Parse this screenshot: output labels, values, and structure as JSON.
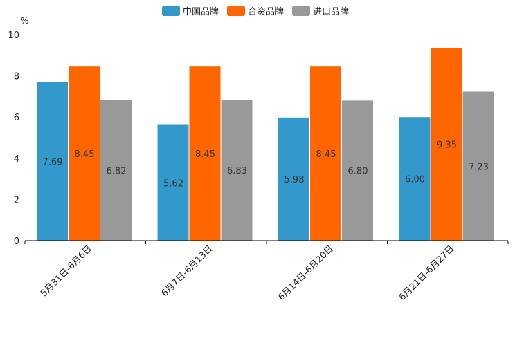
{
  "chart_data": {
    "type": "bar",
    "title": "",
    "xlabel": "",
    "ylabel": "",
    "y_unit": "%",
    "ylim": [
      0,
      10
    ],
    "yticks": [
      0,
      2,
      4,
      6,
      8,
      10
    ],
    "grid": false,
    "legend_position": "top-center",
    "categories": [
      "5月31日-6月6日",
      "6月7日-6月13日",
      "6月14日-6月20日",
      "6月21日-6月27日"
    ],
    "series": [
      {
        "name": "中国品牌",
        "color": "#3399cc",
        "values": [
          7.69,
          5.62,
          5.98,
          6.0
        ],
        "labels": [
          "7.69",
          "5.62",
          "5.98",
          "6.00"
        ]
      },
      {
        "name": "合资品牌",
        "color": "#ff6600",
        "values": [
          8.45,
          8.45,
          8.45,
          9.35
        ],
        "labels": [
          "8.45",
          "8.45",
          "8.45",
          "9.35"
        ]
      },
      {
        "name": "进口品牌",
        "color": "#999999",
        "values": [
          6.82,
          6.83,
          6.8,
          7.23
        ],
        "labels": [
          "6.82",
          "6.83",
          "6.80",
          "7.23"
        ]
      }
    ]
  }
}
